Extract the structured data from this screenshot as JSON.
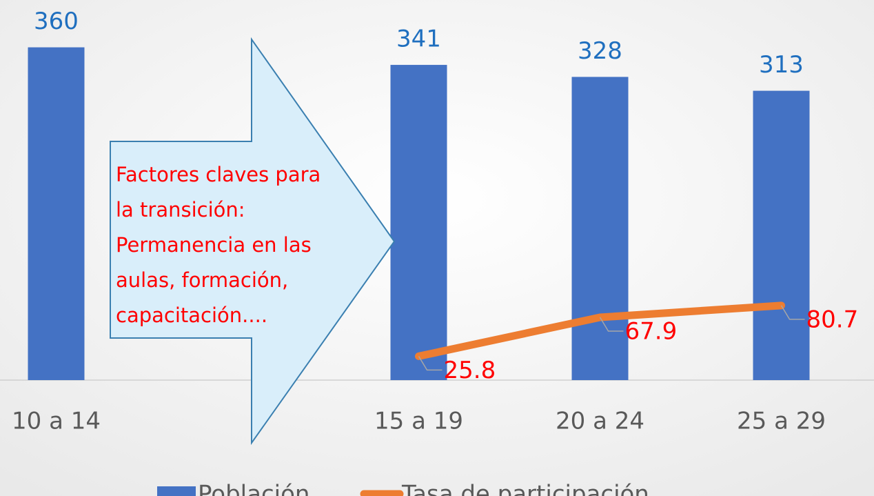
{
  "chart_data": {
    "type": "bar-line",
    "categories": [
      "10 a 14",
      null,
      "15 a 19",
      "20 a 24",
      "25 a 29"
    ],
    "series": [
      {
        "name": "Población",
        "type": "bar",
        "color": "#4472c4",
        "label_color": "#1f6fbf",
        "values": [
          360,
          null,
          341,
          328,
          313
        ]
      },
      {
        "name": "Tasa de participación",
        "type": "line",
        "color": "#ed7d31",
        "label_color": "#ff0000",
        "values": [
          null,
          null,
          25.8,
          67.9,
          80.7
        ]
      }
    ],
    "ylim": [
      0,
      400
    ],
    "annotation": [
      "Factores claves para",
      "la transición:",
      "Permanencia en las",
      "aulas, formación,",
      "capacitación...."
    ],
    "legend": "bottom"
  }
}
